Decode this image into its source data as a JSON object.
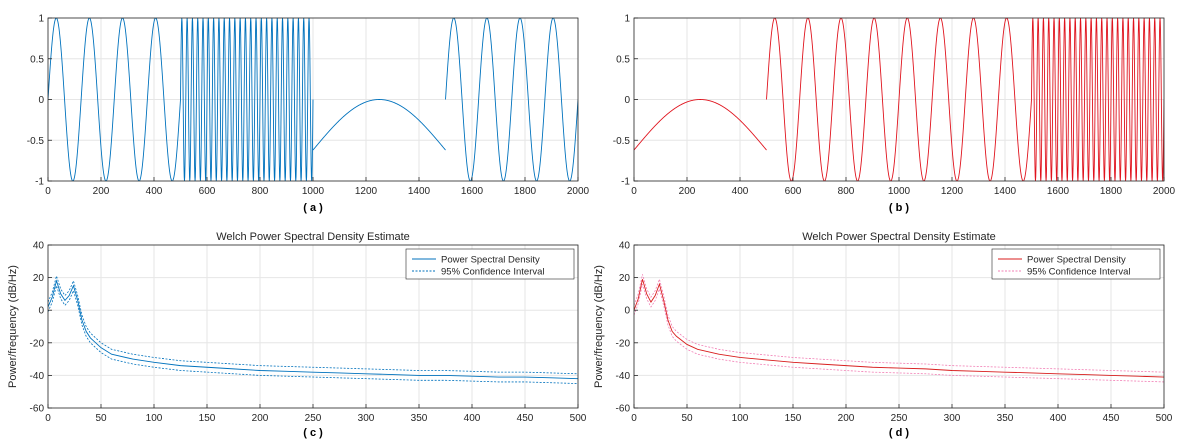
{
  "chart_data": [
    {
      "id": "a",
      "type": "line",
      "panel_label": "( a )",
      "xlim": [
        0,
        2000
      ],
      "ylim": [
        -1,
        1
      ],
      "xticks": [
        "0",
        "200",
        "400",
        "600",
        "800",
        "1000",
        "1200",
        "1400",
        "1600",
        "1800",
        "2000"
      ],
      "yticks": [
        "-1",
        "-0.5",
        "0",
        "0.5",
        "1"
      ],
      "grid": true,
      "color": "#0072BD",
      "segments": [
        {
          "x_start": 0,
          "x_end": 500,
          "cycles_per_sample": 0.008,
          "shape": "sine",
          "phase_start": 0
        },
        {
          "x_start": 500,
          "x_end": 1000,
          "cycles_per_sample": 0.05,
          "shape": "sine",
          "phase_start": 0
        },
        {
          "x_start": 1000,
          "x_end": 1500,
          "shape": "arch",
          "y_start": -0.62,
          "y_peak": 0,
          "y_end": -0.62
        },
        {
          "x_start": 1500,
          "x_end": 2000,
          "cycles_per_sample": 0.008,
          "shape": "sine",
          "phase_start": 0
        }
      ]
    },
    {
      "id": "b",
      "type": "line",
      "panel_label": "( b )",
      "xlim": [
        0,
        2000
      ],
      "ylim": [
        -1,
        1
      ],
      "xticks": [
        "0",
        "200",
        "400",
        "600",
        "800",
        "1000",
        "1200",
        "1400",
        "1600",
        "1800",
        "2000"
      ],
      "yticks": [
        "-1",
        "-0.5",
        "0",
        "0.5",
        "1"
      ],
      "grid": true,
      "color": "#E0141E",
      "segments": [
        {
          "x_start": 0,
          "x_end": 500,
          "shape": "arch",
          "y_start": -0.62,
          "y_peak": 0,
          "y_end": -0.62
        },
        {
          "x_start": 500,
          "x_end": 1500,
          "cycles_per_sample": 0.008,
          "shape": "sine",
          "phase_start": 0
        },
        {
          "x_start": 1500,
          "x_end": 2000,
          "cycles_per_sample": 0.05,
          "shape": "sine",
          "phase_start": 0
        }
      ]
    },
    {
      "id": "c",
      "type": "line",
      "panel_label": "( c )",
      "title": "Welch Power Spectral Density Estimate",
      "ylabel": "Power/frequency (dB/Hz)",
      "xlim": [
        0,
        500
      ],
      "ylim": [
        -60,
        40
      ],
      "xticks": [
        "0",
        "50",
        "100",
        "150",
        "200",
        "250",
        "300",
        "350",
        "400",
        "450",
        "500"
      ],
      "yticks": [
        "-60",
        "-40",
        "-20",
        "0",
        "20",
        "40"
      ],
      "grid": true,
      "color": "#0072BD",
      "legend": {
        "position": "top-right",
        "entries": [
          "Power Spectral Density",
          "95% Confidence Interval"
        ]
      },
      "series": [
        {
          "name": "Power Spectral Density",
          "x": [
            0,
            4,
            8,
            12,
            16,
            20,
            24,
            28,
            32,
            36,
            40,
            50,
            60,
            80,
            100,
            125,
            150,
            175,
            200,
            225,
            250,
            275,
            300,
            325,
            350,
            375,
            400,
            425,
            450,
            475,
            500
          ],
          "values": [
            2,
            8,
            18,
            10,
            6,
            9,
            15,
            6,
            -6,
            -13,
            -17,
            -23,
            -27,
            -30,
            -32,
            -34,
            -35,
            -36,
            -37,
            -37.5,
            -38,
            -38.5,
            -39,
            -39.5,
            -40,
            -40,
            -40.5,
            -41,
            -41,
            -41.5,
            -42
          ]
        },
        {
          "name": "95% Confidence Interval",
          "x": [
            0,
            4,
            8,
            12,
            16,
            20,
            24,
            28,
            32,
            36,
            40,
            50,
            60,
            80,
            100,
            125,
            150,
            175,
            200,
            225,
            250,
            275,
            300,
            325,
            350,
            375,
            400,
            425,
            450,
            475,
            500
          ],
          "values": [
            5,
            11,
            21,
            13,
            9,
            12,
            18,
            9,
            -3,
            -10,
            -14,
            -20,
            -24,
            -27,
            -29,
            -31,
            -32,
            -33,
            -34,
            -34.5,
            -35,
            -35.5,
            -36,
            -36.5,
            -37,
            -37,
            -37.5,
            -38,
            -38,
            -38.5,
            -39
          ]
        },
        {
          "name": "95% Confidence Interval",
          "x": [
            0,
            4,
            8,
            12,
            16,
            20,
            24,
            28,
            32,
            36,
            40,
            50,
            60,
            80,
            100,
            125,
            150,
            175,
            200,
            225,
            250,
            275,
            300,
            325,
            350,
            375,
            400,
            425,
            450,
            475,
            500
          ],
          "values": [
            -1,
            5,
            15,
            7,
            3,
            6,
            12,
            3,
            -9,
            -16,
            -20,
            -26,
            -30,
            -33,
            -35,
            -37,
            -38,
            -39,
            -40,
            -40.5,
            -41,
            -41.5,
            -42,
            -42.5,
            -43,
            -43,
            -43.5,
            -44,
            -44,
            -44.5,
            -45
          ]
        }
      ]
    },
    {
      "id": "d",
      "type": "line",
      "panel_label": "( d )",
      "title": "Welch Power Spectral Density Estimate",
      "ylabel": "Power/frequency (dB/Hz)",
      "xlim": [
        0,
        500
      ],
      "ylim": [
        -60,
        40
      ],
      "xticks": [
        "0",
        "50",
        "100",
        "150",
        "200",
        "250",
        "300",
        "350",
        "400",
        "450",
        "500"
      ],
      "yticks": [
        "-60",
        "-40",
        "-20",
        "0",
        "20",
        "40"
      ],
      "grid": true,
      "color": "#D81E1E",
      "ci_color": "#F27FB5",
      "legend": {
        "position": "top-right",
        "entries": [
          "Power Spectral Density",
          "95% Confidence Interval"
        ]
      },
      "series": [
        {
          "name": "Power Spectral Density",
          "x": [
            0,
            4,
            8,
            12,
            16,
            20,
            24,
            28,
            32,
            36,
            40,
            50,
            60,
            80,
            100,
            125,
            150,
            175,
            200,
            225,
            250,
            275,
            300,
            325,
            350,
            375,
            400,
            425,
            450,
            475,
            500
          ],
          "values": [
            0,
            7,
            19,
            10,
            5,
            9,
            16,
            6,
            -6,
            -13,
            -16,
            -21,
            -24,
            -27,
            -29,
            -30.5,
            -32,
            -33,
            -34,
            -35,
            -35.5,
            -36,
            -37,
            -37.5,
            -38,
            -38.5,
            -39,
            -39.5,
            -40,
            -40.5,
            -41
          ]
        },
        {
          "name": "95% Confidence Interval",
          "x": [
            0,
            4,
            8,
            12,
            16,
            20,
            24,
            28,
            32,
            36,
            40,
            50,
            60,
            80,
            100,
            125,
            150,
            175,
            200,
            225,
            250,
            275,
            300,
            325,
            350,
            375,
            400,
            425,
            450,
            475,
            500
          ],
          "values": [
            3,
            10,
            22,
            13,
            8,
            12,
            19,
            9,
            -3,
            -10,
            -13,
            -18,
            -21,
            -24,
            -26,
            -27.5,
            -29,
            -30,
            -31,
            -32,
            -32.5,
            -33,
            -34,
            -34.5,
            -35,
            -35.5,
            -36,
            -36.5,
            -37,
            -37.5,
            -38
          ]
        },
        {
          "name": "95% Confidence Interval",
          "x": [
            0,
            4,
            8,
            12,
            16,
            20,
            24,
            28,
            32,
            36,
            40,
            50,
            60,
            80,
            100,
            125,
            150,
            175,
            200,
            225,
            250,
            275,
            300,
            325,
            350,
            375,
            400,
            425,
            450,
            475,
            500
          ],
          "values": [
            -3,
            4,
            16,
            7,
            2,
            6,
            13,
            3,
            -9,
            -16,
            -19,
            -24,
            -27,
            -30,
            -32,
            -33.5,
            -35,
            -36,
            -37,
            -38,
            -38.5,
            -39,
            -40,
            -40.5,
            -41,
            -41.5,
            -42,
            -42.5,
            -43,
            -43.5,
            -44
          ]
        }
      ]
    }
  ]
}
